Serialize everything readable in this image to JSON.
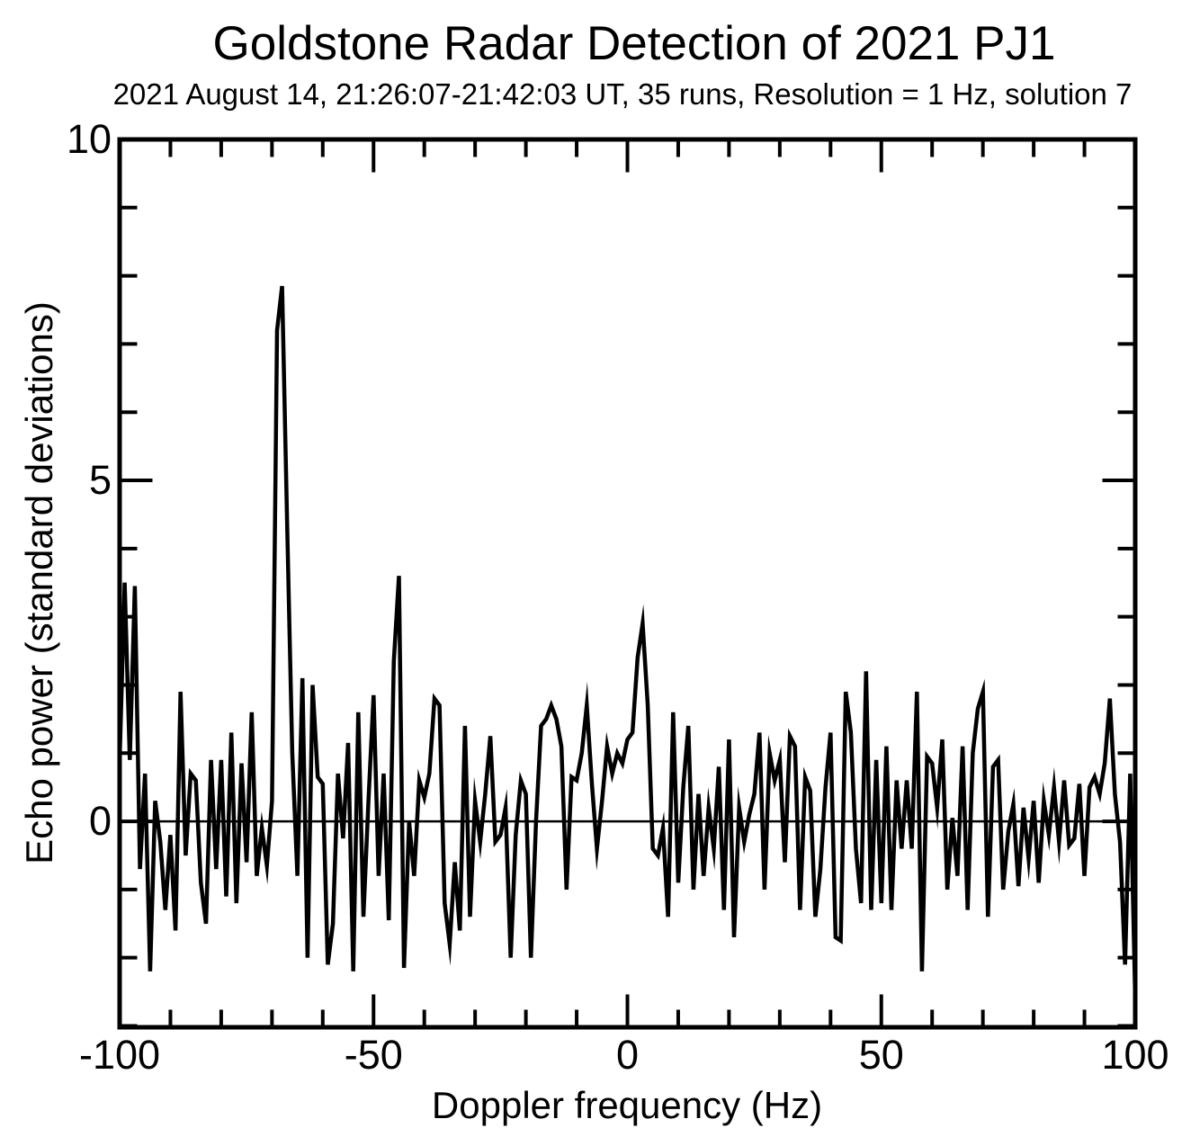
{
  "figure": {
    "background": "#ffffff",
    "ink": "#000000"
  },
  "chart_data": {
    "type": "line",
    "title": "Goldstone Radar Detection of 2021 PJ1",
    "subtitle": "2021 August 14, 21:26:07-21:42:03 UT, 35 runs, Resolution = 1 Hz, solution 7",
    "xlabel": "Doppler frequency (Hz)",
    "ylabel": "Echo power (standard deviations)",
    "xlim": [
      -100,
      100
    ],
    "ylim": [
      -3.02,
      10
    ],
    "x_major_ticks": [
      -100,
      -50,
      0,
      50,
      100
    ],
    "x_tick_labels": [
      "-100",
      "-50",
      "0",
      "50",
      "100"
    ],
    "x_minor_step": 10,
    "y_major_ticks": [
      0,
      5,
      10
    ],
    "y_tick_labels": [
      "0",
      "5",
      "10"
    ],
    "y_minor_step": 1,
    "grid": false,
    "zero_line": true,
    "legend": null,
    "line_color": "#000000",
    "background": "#ffffff",
    "x_start": -100,
    "x_step": 1,
    "peak": {
      "x": -68,
      "y": 7.85
    },
    "values": [
      0.9,
      3.5,
      0.9,
      3.45,
      -0.7,
      0.7,
      -2.2,
      0.3,
      -0.3,
      -1.3,
      -0.2,
      -1.6,
      1.9,
      -0.5,
      0.7,
      0.6,
      -0.9,
      -1.5,
      0.9,
      -0.7,
      0.9,
      -1.1,
      1.3,
      -1.2,
      0.85,
      -0.6,
      1.6,
      -0.8,
      -0.1,
      -0.65,
      0.3,
      7.2,
      7.85,
      4.3,
      1.0,
      -0.8,
      2.1,
      -2.0,
      2.0,
      0.65,
      0.55,
      -2.1,
      -1.5,
      0.7,
      -0.25,
      1.15,
      -2.2,
      1.6,
      -1.4,
      0.3,
      1.85,
      -0.8,
      0.7,
      -1.45,
      2.35,
      3.6,
      -2.15,
      0.0,
      -0.8,
      0.6,
      0.35,
      0.7,
      1.8,
      1.7,
      -1.2,
      -1.8,
      -0.6,
      -1.6,
      1.4,
      -1.4,
      0.3,
      -0.3,
      0.4,
      1.25,
      -0.3,
      -0.2,
      0.2,
      -2.0,
      -0.2,
      0.6,
      0.4,
      -2.0,
      0.0,
      1.4,
      1.5,
      1.7,
      1.5,
      1.1,
      -1.0,
      0.65,
      0.6,
      1.0,
      1.7,
      0.55,
      -0.4,
      0.3,
      1.1,
      0.7,
      1.0,
      0.85,
      1.2,
      1.3,
      2.4,
      2.9,
      1.7,
      -0.4,
      -0.5,
      -0.1,
      -1.4,
      1.6,
      -0.9,
      0.5,
      1.4,
      -1.0,
      0.4,
      -0.8,
      0.2,
      -0.4,
      0.8,
      -1.3,
      1.2,
      -1.7,
      0.2,
      -0.3,
      0.1,
      0.4,
      1.3,
      -1.0,
      1.0,
      0.6,
      0.9,
      -0.6,
      1.25,
      1.1,
      -1.3,
      0.65,
      0.45,
      -1.4,
      -0.7,
      0.5,
      1.3,
      -1.7,
      -1.75,
      1.9,
      1.3,
      -0.4,
      -1.2,
      2.2,
      -1.3,
      0.9,
      -1.2,
      1.1,
      -1.3,
      0.6,
      -0.4,
      0.6,
      -0.4,
      1.9,
      -2.2,
      0.95,
      0.85,
      0.2,
      1.2,
      -1.0,
      0.05,
      -0.8,
      1.1,
      -1.3,
      1.0,
      1.65,
      1.9,
      -1.4,
      0.8,
      0.9,
      -1.0,
      -0.15,
      0.25,
      -0.95,
      0.2,
      -0.55,
      0.3,
      -0.9,
      0.3,
      -0.2,
      0.5,
      -0.3,
      0.6,
      -0.35,
      -0.25,
      0.55,
      -0.8,
      0.5,
      0.65,
      0.4,
      0.85,
      1.8,
      0.4,
      -0.3,
      -2.1,
      0.7,
      -2.6
    ]
  }
}
